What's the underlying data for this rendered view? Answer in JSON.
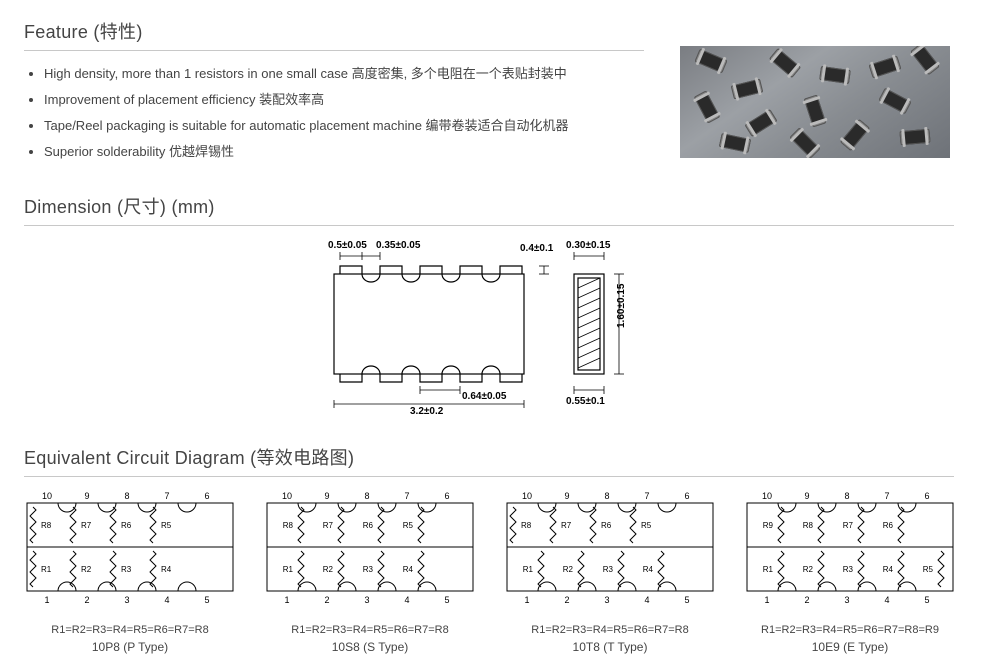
{
  "feature": {
    "heading": "Feature (特性)",
    "bullets": [
      "High density, more than 1 resistors in one small case 高度密集, 多个电阻在一个表贴封装中",
      "Improvement of placement efficiency 装配效率高",
      "Tape/Reel packaging is suitable for automatic placement machine 编带卷装适合自动化机器",
      "Superior solderability 优越焊锡性"
    ]
  },
  "dimension": {
    "heading": "Dimension (尺寸) (mm)",
    "labels": {
      "d1": "0.5±0.05",
      "d2": "0.35±0.05",
      "d3": "3.2±0.2",
      "d4": "0.64±0.05",
      "d5": "0.4±0.1",
      "d6": "0.30±0.15",
      "d7": "1.60±0.15",
      "d8": "0.55±0.1"
    },
    "colors": {
      "stroke": "#000000",
      "hatch": "#000000",
      "text": "#000000"
    },
    "line_width": 1,
    "font_size": 10,
    "font_weight": "bold"
  },
  "equivalent": {
    "heading": "Equivalent Circuit Diagram (等效电路图)",
    "pins_top": [
      "10",
      "9",
      "8",
      "7",
      "6"
    ],
    "pins_bot": [
      "1",
      "2",
      "3",
      "4",
      "5"
    ],
    "diagrams": [
      {
        "top_r": [
          "R8",
          "R7",
          "R6",
          "R5"
        ],
        "bot_r": [
          "R1",
          "R2",
          "R3",
          "R4"
        ],
        "top_pos": [
          "left",
          "left",
          "left",
          "left"
        ],
        "bot_pos": [
          "left",
          "left",
          "left",
          "left"
        ],
        "caption": "R1=R2=R3=R4=R5=R6=R7=R8",
        "type": "10P8 (P Type)"
      },
      {
        "top_r": [
          "R8",
          "R7",
          "R6",
          "R5"
        ],
        "bot_r": [
          "R1",
          "R2",
          "R3",
          "R4"
        ],
        "top_pos": [
          "right",
          "right",
          "right",
          "right"
        ],
        "bot_pos": [
          "right",
          "right",
          "right",
          "right"
        ],
        "caption": "R1=R2=R3=R4=R5=R6=R7=R8",
        "type": "10S8 (S Type)"
      },
      {
        "top_r": [
          "R8",
          "R7",
          "R6",
          "R5"
        ],
        "bot_r": [
          "R1",
          "R2",
          "R3",
          "R4"
        ],
        "top_pos": [
          "left",
          "left",
          "left",
          "left"
        ],
        "bot_pos": [
          "right",
          "right",
          "right",
          "right"
        ],
        "caption": "R1=R2=R3=R4=R5=R6=R7=R8",
        "type": "10T8 (T Type)"
      },
      {
        "top_r": [
          "R9",
          "R8",
          "R7",
          "R6"
        ],
        "bot_r": [
          "R1",
          "R2",
          "R3",
          "R4",
          "R5"
        ],
        "top_pos": [
          "right",
          "right",
          "right",
          "right"
        ],
        "bot_pos": [
          "right",
          "right",
          "right",
          "right",
          "right"
        ],
        "caption": "R1=R2=R3=R4=R5=R6=R7=R8=R9",
        "type": "10E9  (E Type)"
      }
    ],
    "colors": {
      "stroke": "#000000",
      "text": "#444444"
    },
    "font_size": 9
  },
  "colors": {
    "text": "#444444",
    "rule": "#c8c8c8",
    "bg": "#ffffff"
  }
}
